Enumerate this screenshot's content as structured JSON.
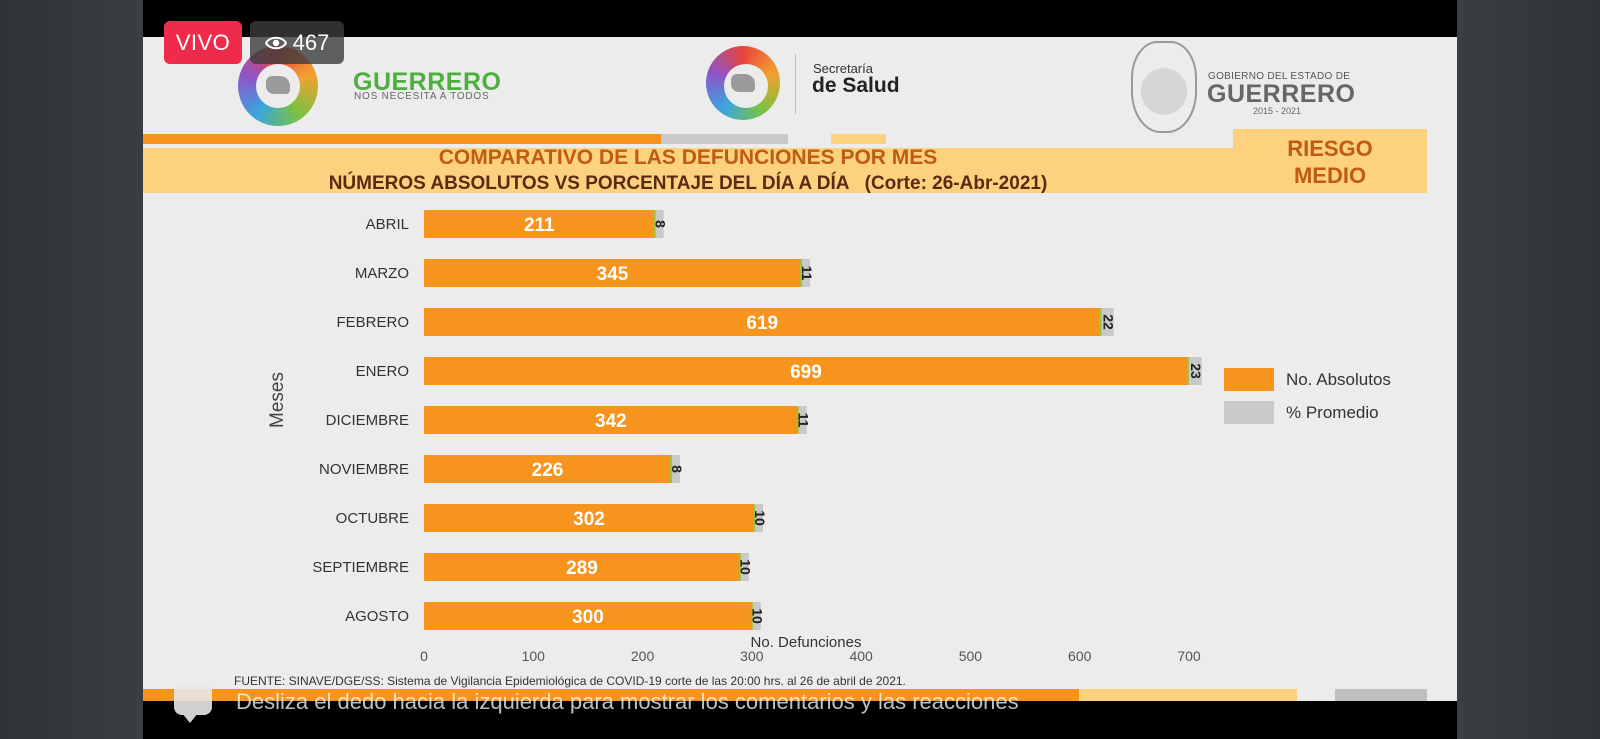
{
  "stream": {
    "live_label": "VIVO",
    "viewer_count": "467",
    "comment_hint": "Desliza el dedo hacia la izquierda para mostrar los comentarios y las reacciones"
  },
  "header": {
    "guerrero_brand": "GUERRERO",
    "guerrero_tagline": "NOS NECESITA A TODOS",
    "secretaria_line1": "Secretaría",
    "secretaria_line2": "de Salud",
    "gobierno_line1": "GOBIERNO DEL ESTADO DE",
    "gobierno_line2": "GUERRERO",
    "gobierno_years": "2015 - 2021"
  },
  "slide": {
    "title": "COMPARATIVO DE LAS DEFUNCIONES POR MES",
    "subtitle": "NÚMEROS ABSOLUTOS VS PORCENTAJE DEL DÍA A DÍA   (Corte: 26-Abr-2021)",
    "risk_line1": "RIESGO",
    "risk_line2": "MEDIO",
    "source": "FUENTE: SINAVE/DGE/SS: Sistema de Vigilancia Epidemiológica de COVID-19 corte de las 20:00 hrs. al 26 de  abril de 2021."
  },
  "colors": {
    "orange": "#f7941d",
    "grey": "#c9c9c9",
    "title_orange": "#c15b12",
    "banner": "#fdd27f"
  },
  "chart_data": {
    "type": "bar",
    "orientation": "horizontal",
    "stacked": true,
    "categories": [
      "ABRIL",
      "MARZO",
      "FEBRERO",
      "ENERO",
      "DICIEMBRE",
      "NOVIEMBRE",
      "OCTUBRE",
      "SEPTIEMBRE",
      "AGOSTO"
    ],
    "series": [
      {
        "name": "No. Absolutos",
        "color": "#f7941d",
        "values": [
          211,
          345,
          619,
          699,
          342,
          226,
          302,
          289,
          300
        ]
      },
      {
        "name": "% Promedio",
        "color": "#c9c9c9",
        "values": [
          8,
          11,
          22,
          23,
          11,
          8,
          10,
          10,
          10
        ]
      }
    ],
    "xlabel": "No. Defunciones",
    "ylabel": "Meses",
    "xlim": [
      0,
      700
    ],
    "xticks": [
      0,
      100,
      200,
      300,
      400,
      500,
      600,
      700
    ],
    "legend_position": "right",
    "grid": false
  }
}
